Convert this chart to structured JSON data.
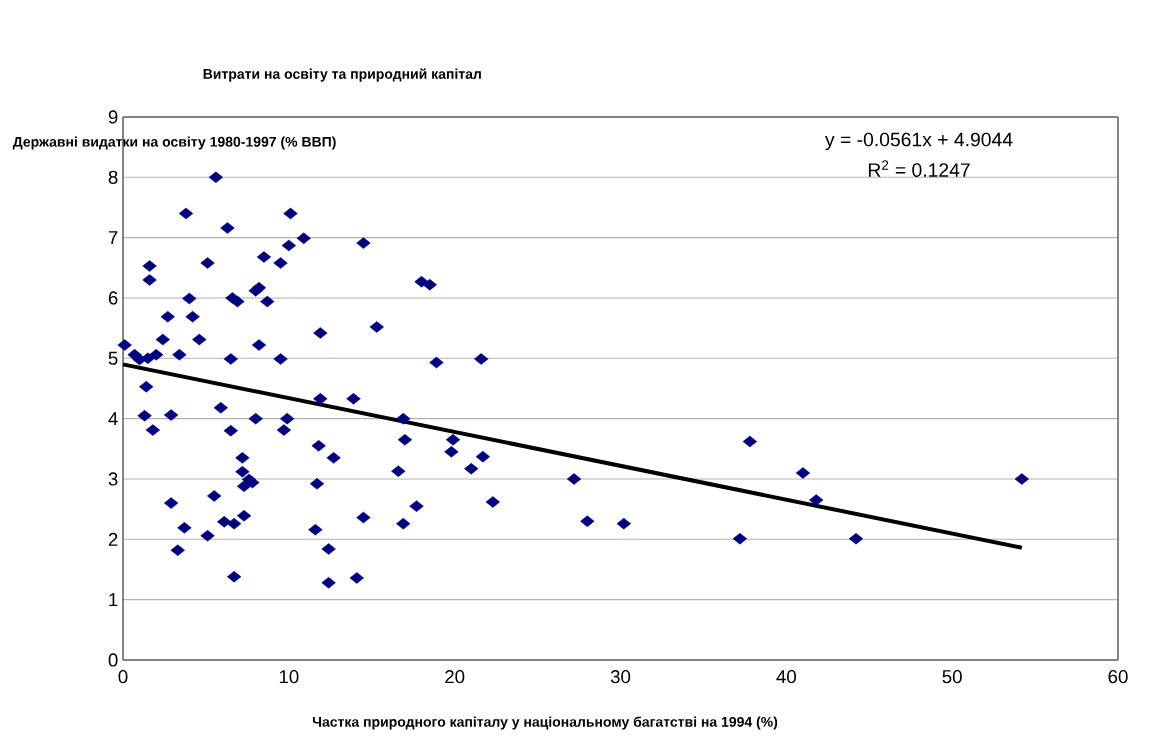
{
  "chart_data": {
    "type": "scatter",
    "title": "Витрати на освіту та природний капітал",
    "xlabel": "Частка природного капіталу у національному багатстві на 1994 (%)",
    "ylabel": "Державні видатки на освіту 1980-1997 (% ВВП)",
    "annotations": [
      "y = -0.0561x + 4.9044",
      "R$^{2}$ = 0.1247"
    ],
    "xlim": [
      0,
      60
    ],
    "xticks": [
      0,
      10,
      20,
      30,
      40,
      50,
      60
    ],
    "ylim": [
      0,
      9
    ],
    "yticks": [
      0,
      1,
      2,
      3,
      4,
      5,
      6,
      7,
      8,
      9
    ],
    "grid": "y",
    "series": [
      {
        "color": "#000080",
        "marker": "diamond",
        "x": [
          0.1,
          0.7,
          1.0,
          1.5,
          2.0,
          1.6,
          1.6,
          1.4,
          1.3,
          1.8,
          2.4,
          2.7,
          2.9,
          2.9,
          3.7,
          3.3,
          3.4,
          3.8,
          4.0,
          4.2,
          4.6,
          5.1,
          5.1,
          5.6,
          5.5,
          5.9,
          6.3,
          6.1,
          6.5,
          6.5,
          6.7,
          6.6,
          6.9,
          6.7,
          7.2,
          7.2,
          7.3,
          7.3,
          7.6,
          7.8,
          8.0,
          8.2,
          8.0,
          8.2,
          8.5,
          8.7,
          9.5,
          9.5,
          9.7,
          9.9,
          10.0,
          10.1,
          10.9,
          14.5,
          18.0,
          18.5,
          11.9,
          15.3,
          18.9,
          21.6,
          11.9,
          13.9,
          16.9,
          11.8,
          12.7,
          17.0,
          19.9,
          19.8,
          21.7,
          16.6,
          21.0,
          11.7,
          22.3,
          17.7,
          14.5,
          16.9,
          11.6,
          12.4,
          12.4,
          14.1,
          27.2,
          28.0,
          30.2,
          37.8,
          37.2,
          41.0,
          41.8,
          44.2,
          54.2
        ],
        "values": [
          5.22,
          5.06,
          4.98,
          5.0,
          5.06,
          6.53,
          6.3,
          4.53,
          4.05,
          3.81,
          5.31,
          5.69,
          4.06,
          2.6,
          2.19,
          1.82,
          5.06,
          7.4,
          5.99,
          5.69,
          5.31,
          6.58,
          2.06,
          8.0,
          2.72,
          4.18,
          7.16,
          2.29,
          4.99,
          3.8,
          1.38,
          6.0,
          5.94,
          2.26,
          3.12,
          3.35,
          2.39,
          2.88,
          2.99,
          2.94,
          6.12,
          6.17,
          4.0,
          5.22,
          6.68,
          5.94,
          6.58,
          4.99,
          3.81,
          4.0,
          6.87,
          7.4,
          6.99,
          6.91,
          6.27,
          6.22,
          5.42,
          5.52,
          4.93,
          4.99,
          4.33,
          4.33,
          4.0,
          3.55,
          3.35,
          3.65,
          3.65,
          3.45,
          3.37,
          3.13,
          3.17,
          2.92,
          2.62,
          2.55,
          2.36,
          2.26,
          2.16,
          1.84,
          1.28,
          1.36,
          3.0,
          2.3,
          2.26,
          3.62,
          2.01,
          3.1,
          2.65,
          2.01,
          3.0
        ]
      },
      {
        "type": "line",
        "color": "#000000",
        "x": [
          0,
          54.2
        ],
        "values": [
          4.9,
          1.86
        ]
      }
    ]
  }
}
